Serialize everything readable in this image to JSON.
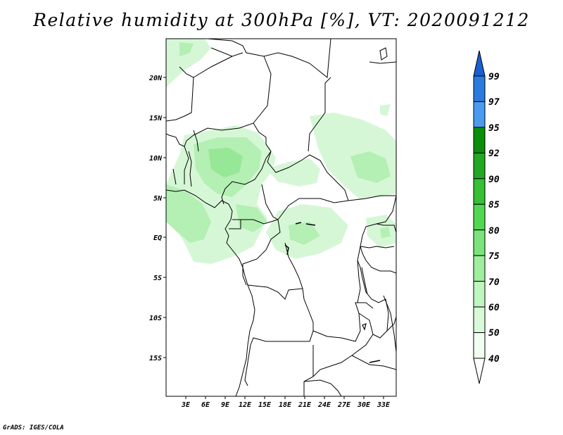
{
  "title": "Relative humidity at 300hPa [%], VT: 2020091212",
  "credit": "GrADS: IGES/COLA",
  "map": {
    "lon_labels": [
      "3E",
      "6E",
      "9E",
      "12E",
      "15E",
      "18E",
      "21E",
      "24E",
      "27E",
      "30E",
      "33E"
    ],
    "lat_labels": [
      "20N",
      "15N",
      "10N",
      "5N",
      "EQ",
      "5S",
      "10S",
      "15S"
    ]
  },
  "colorbar": {
    "labels": [
      "99",
      "97",
      "95",
      "92",
      "90",
      "85",
      "80",
      "75",
      "70",
      "60",
      "50",
      "40"
    ],
    "colors": [
      "#1a5fd0",
      "#2a7be0",
      "#4a9af0",
      "#0a8f0a",
      "#22a822",
      "#35c035",
      "#50d850",
      "#7ae47a",
      "#9eee9e",
      "#bff5bf",
      "#d8fad8",
      "#f0fff0"
    ]
  }
}
